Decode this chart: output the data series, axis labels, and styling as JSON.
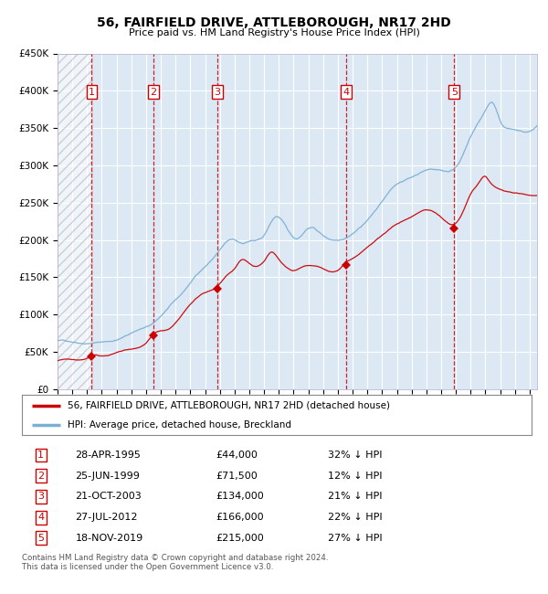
{
  "title": "56, FAIRFIELD DRIVE, ATTLEBOROUGH, NR17 2HD",
  "subtitle": "Price paid vs. HM Land Registry's House Price Index (HPI)",
  "ylim": [
    0,
    450000
  ],
  "yticks": [
    0,
    50000,
    100000,
    150000,
    200000,
    250000,
    300000,
    350000,
    400000,
    450000
  ],
  "ytick_labels": [
    "£0",
    "£50K",
    "£100K",
    "£150K",
    "£200K",
    "£250K",
    "£300K",
    "£350K",
    "£400K",
    "£450K"
  ],
  "background_color": "#dce9f5",
  "xmin": 1993.0,
  "xmax": 2025.5,
  "hatch_end": 1995.33,
  "sale_dates_x": [
    1995.32,
    1999.48,
    2003.81,
    2012.58,
    2019.88
  ],
  "sale_prices_y": [
    44000,
    71500,
    134000,
    166000,
    215000
  ],
  "sale_labels": [
    "1",
    "2",
    "3",
    "4",
    "5"
  ],
  "legend_line1": "56, FAIRFIELD DRIVE, ATTLEBOROUGH, NR17 2HD (detached house)",
  "legend_line2": "HPI: Average price, detached house, Breckland",
  "table_rows": [
    [
      "1",
      "28-APR-1995",
      "£44,000",
      "32% ↓ HPI"
    ],
    [
      "2",
      "25-JUN-1999",
      "£71,500",
      "12% ↓ HPI"
    ],
    [
      "3",
      "21-OCT-2003",
      "£134,000",
      "21% ↓ HPI"
    ],
    [
      "4",
      "27-JUL-2012",
      "£166,000",
      "22% ↓ HPI"
    ],
    [
      "5",
      "18-NOV-2019",
      "£215,000",
      "27% ↓ HPI"
    ]
  ],
  "footer": "Contains HM Land Registry data © Crown copyright and database right 2024.\nThis data is licensed under the Open Government Licence v3.0.",
  "hpi_color": "#7bafd4",
  "price_color": "#cc0000",
  "vline_color": "#cc0000",
  "marker_color": "#cc0000",
  "hpi_anchors_x": [
    1993.0,
    1994.0,
    1995.0,
    1996.0,
    1997.0,
    1997.5,
    1998.5,
    1999.5,
    2000.5,
    2001.5,
    2002.5,
    2003.5,
    2004.2,
    2004.8,
    2005.5,
    2006.0,
    2007.0,
    2007.8,
    2008.5,
    2009.2,
    2010.0,
    2011.0,
    2012.0,
    2013.0,
    2014.5,
    2016.0,
    2017.0,
    2018.0,
    2019.0,
    2020.0,
    2021.0,
    2022.0,
    2022.5,
    2023.0,
    2023.5,
    2024.0,
    2024.5,
    2025.5
  ],
  "hpi_anchors_y": [
    65000,
    64000,
    63000,
    65000,
    68000,
    72000,
    82000,
    90000,
    110000,
    130000,
    155000,
    175000,
    192000,
    200000,
    195000,
    198000,
    205000,
    230000,
    215000,
    200000,
    215000,
    205000,
    200000,
    210000,
    240000,
    275000,
    285000,
    295000,
    295000,
    300000,
    340000,
    375000,
    385000,
    360000,
    350000,
    348000,
    345000,
    350000
  ],
  "price_anchors_x": [
    1993.0,
    1994.0,
    1995.0,
    1995.32,
    1996.0,
    1997.0,
    1998.0,
    1999.0,
    1999.48,
    2000.5,
    2001.5,
    2002.5,
    2003.5,
    2003.81,
    2004.5,
    2005.0,
    2005.5,
    2006.0,
    2007.0,
    2007.5,
    2008.0,
    2008.5,
    2009.0,
    2009.5,
    2010.0,
    2011.0,
    2012.0,
    2012.58,
    2013.0,
    2014.0,
    2015.0,
    2016.0,
    2017.0,
    2018.0,
    2019.0,
    2019.88,
    2020.5,
    2021.0,
    2021.5,
    2022.0,
    2022.2,
    2023.0,
    2024.0,
    2025.0,
    2025.5
  ],
  "price_anchors_y": [
    38000,
    39000,
    41000,
    44000,
    44000,
    48000,
    52000,
    60000,
    71500,
    78000,
    98000,
    120000,
    130000,
    134000,
    150000,
    158000,
    170000,
    165000,
    168000,
    180000,
    170000,
    160000,
    155000,
    160000,
    163000,
    158000,
    155000,
    166000,
    170000,
    185000,
    200000,
    215000,
    225000,
    235000,
    225000,
    215000,
    232000,
    255000,
    268000,
    278000,
    273000,
    260000,
    255000,
    252000,
    252000
  ]
}
